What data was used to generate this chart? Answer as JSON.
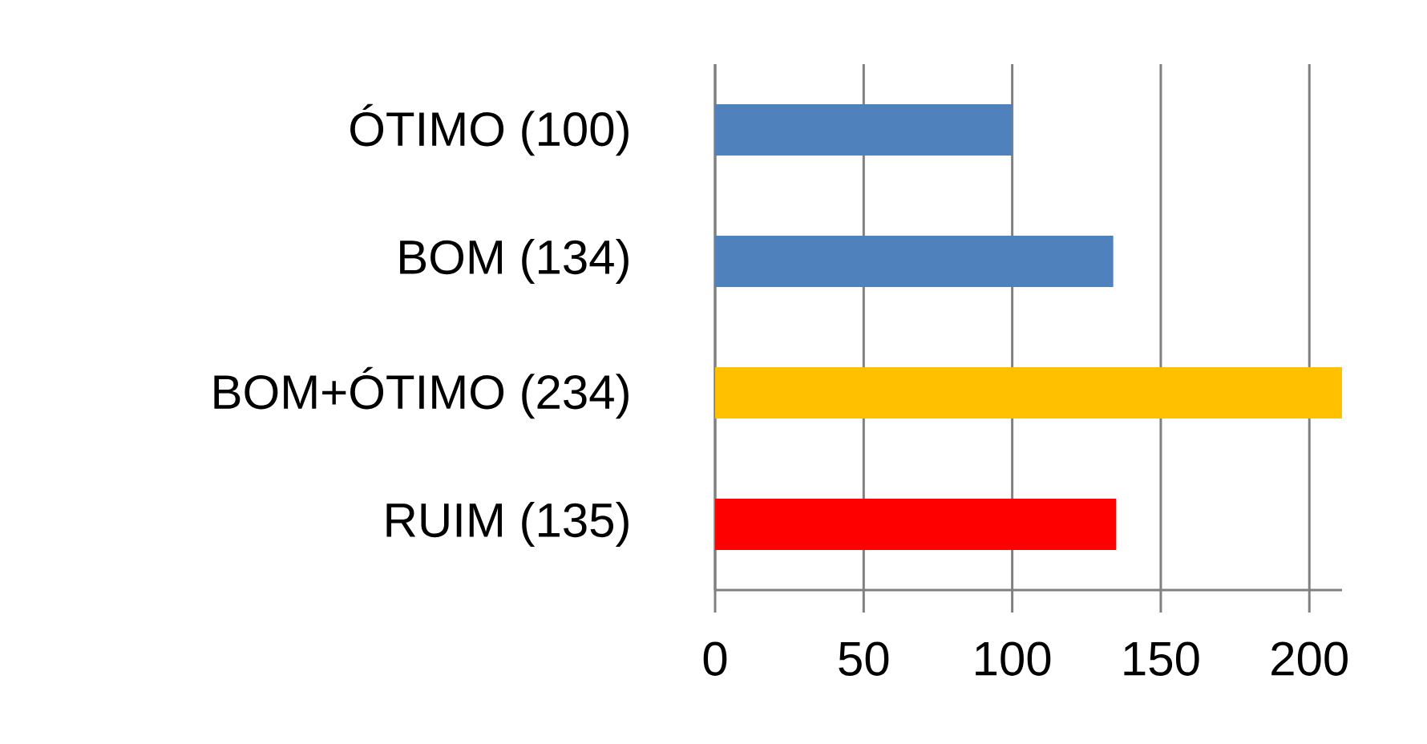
{
  "chart_data": {
    "type": "bar",
    "orientation": "horizontal",
    "categories": [
      "ÓTIMO (100)",
      "BOM (134)",
      "BOM+ÓTIMO (234)",
      "RUIM (135)"
    ],
    "values": [
      100,
      134,
      211,
      135
    ],
    "colors": [
      "#4f81bd",
      "#4f81bd",
      "#ffc000",
      "#ff0000"
    ],
    "xlim": [
      0,
      211
    ],
    "xticks": [
      0,
      50,
      100,
      150,
      200
    ],
    "grid": "x"
  }
}
